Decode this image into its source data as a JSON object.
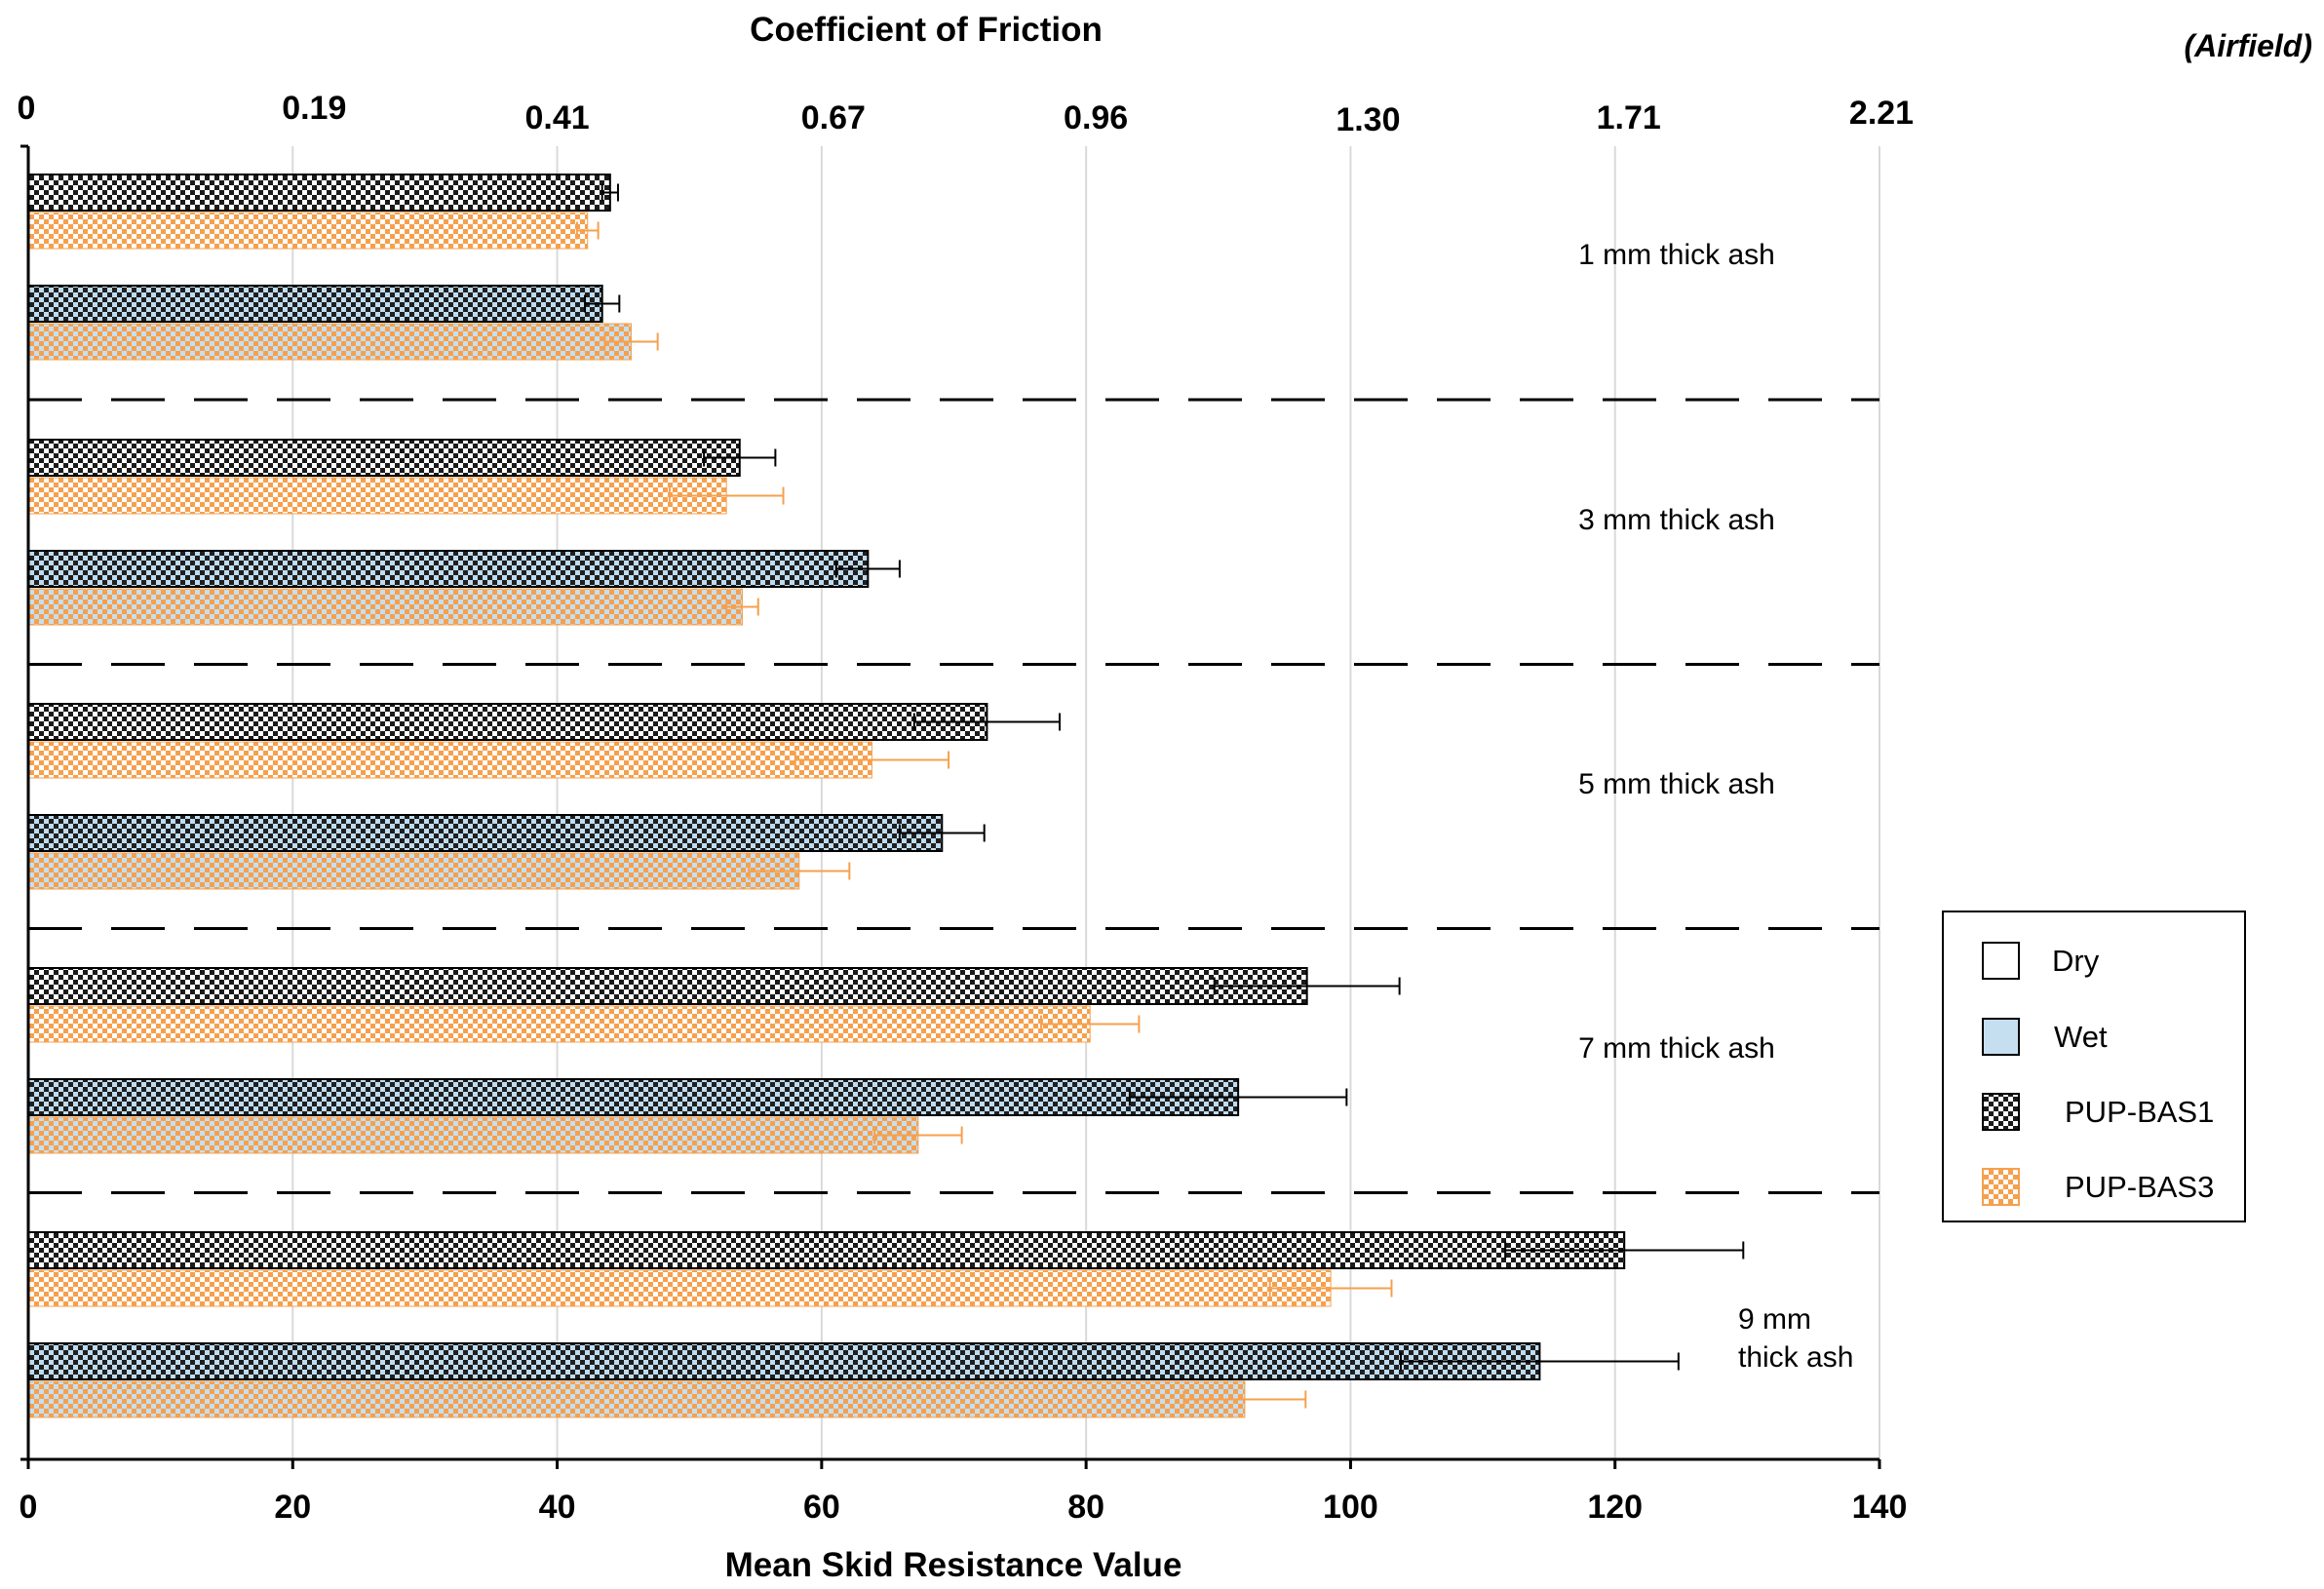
{
  "chart_data": {
    "type": "bar",
    "orientation": "horizontal",
    "xlabel": "Mean Skid Resistance Value",
    "xlim": [
      0,
      140
    ],
    "x_ticks": [
      "0",
      "20",
      "40",
      "60",
      "80",
      "100",
      "120",
      "140"
    ],
    "top_axis_title": "Coefficient of Friction",
    "top_axis_note": "(Airfield)",
    "top_ticks": [
      {
        "value": 0,
        "label": "0"
      },
      {
        "value": 20,
        "label": "0.19"
      },
      {
        "value": 40,
        "label": "0.41"
      },
      {
        "value": 60,
        "label": "0.67"
      },
      {
        "value": 80,
        "label": "0.96"
      },
      {
        "value": 100,
        "label": "1.30"
      },
      {
        "value": 120,
        "label": "1.71"
      },
      {
        "value": 140,
        "label": "2.21"
      }
    ],
    "grid": true,
    "legend_position": "right",
    "legend": [
      {
        "name": "Dry",
        "kind": "condition",
        "color": "#ffffff"
      },
      {
        "name": "Wet",
        "kind": "condition",
        "color": "#c5dff0"
      },
      {
        "name": "PUP-BAS1",
        "kind": "material",
        "color": "#000000"
      },
      {
        "name": "PUP-BAS3",
        "kind": "material",
        "color": "#f6a04d"
      }
    ],
    "groups": [
      {
        "label": [
          "1 mm thick ash"
        ],
        "bars": [
          {
            "condition": "Dry",
            "material": "PUP-BAS1",
            "value": 44,
            "error": 0.6
          },
          {
            "condition": "Dry",
            "material": "PUP-BAS3",
            "value": 42.3,
            "error": 0.8
          },
          {
            "condition": "Wet",
            "material": "PUP-BAS1",
            "value": 43.4,
            "error": 1.3
          },
          {
            "condition": "Wet",
            "material": "PUP-BAS3",
            "value": 45.6,
            "error": 2
          }
        ]
      },
      {
        "label": [
          "3 mm thick ash"
        ],
        "bars": [
          {
            "condition": "Dry",
            "material": "PUP-BAS1",
            "value": 53.8,
            "error": 2.7
          },
          {
            "condition": "Dry",
            "material": "PUP-BAS3",
            "value": 52.8,
            "error": 4.3
          },
          {
            "condition": "Wet",
            "material": "PUP-BAS1",
            "value": 63.5,
            "error": 2.4
          },
          {
            "condition": "Wet",
            "material": "PUP-BAS3",
            "value": 54,
            "error": 1.2
          }
        ]
      },
      {
        "label": [
          "5 mm thick ash"
        ],
        "bars": [
          {
            "condition": "Dry",
            "material": "PUP-BAS1",
            "value": 72.5,
            "error": 5.5
          },
          {
            "condition": "Dry",
            "material": "PUP-BAS3",
            "value": 63.8,
            "error": 5.8
          },
          {
            "condition": "Wet",
            "material": "PUP-BAS1",
            "value": 69.1,
            "error": 3.2
          },
          {
            "condition": "Wet",
            "material": "PUP-BAS3",
            "value": 58.3,
            "error": 3.8
          }
        ]
      },
      {
        "label": [
          "7 mm thick ash"
        ],
        "bars": [
          {
            "condition": "Dry",
            "material": "PUP-BAS1",
            "value": 96.7,
            "error": 7
          },
          {
            "condition": "Dry",
            "material": "PUP-BAS3",
            "value": 80.3,
            "error": 3.7
          },
          {
            "condition": "Wet",
            "material": "PUP-BAS1",
            "value": 91.5,
            "error": 8.2
          },
          {
            "condition": "Wet",
            "material": "PUP-BAS3",
            "value": 67.3,
            "error": 3.3
          }
        ]
      },
      {
        "label": [
          "9 mm",
          "thick ash"
        ],
        "bars": [
          {
            "condition": "Dry",
            "material": "PUP-BAS1",
            "value": 120.7,
            "error": 9
          },
          {
            "condition": "Dry",
            "material": "PUP-BAS3",
            "value": 98.5,
            "error": 4.6
          },
          {
            "condition": "Wet",
            "material": "PUP-BAS1",
            "value": 114.3,
            "error": 10.5
          },
          {
            "condition": "Wet",
            "material": "PUP-BAS3",
            "value": 92,
            "error": 4.6
          }
        ]
      }
    ]
  }
}
